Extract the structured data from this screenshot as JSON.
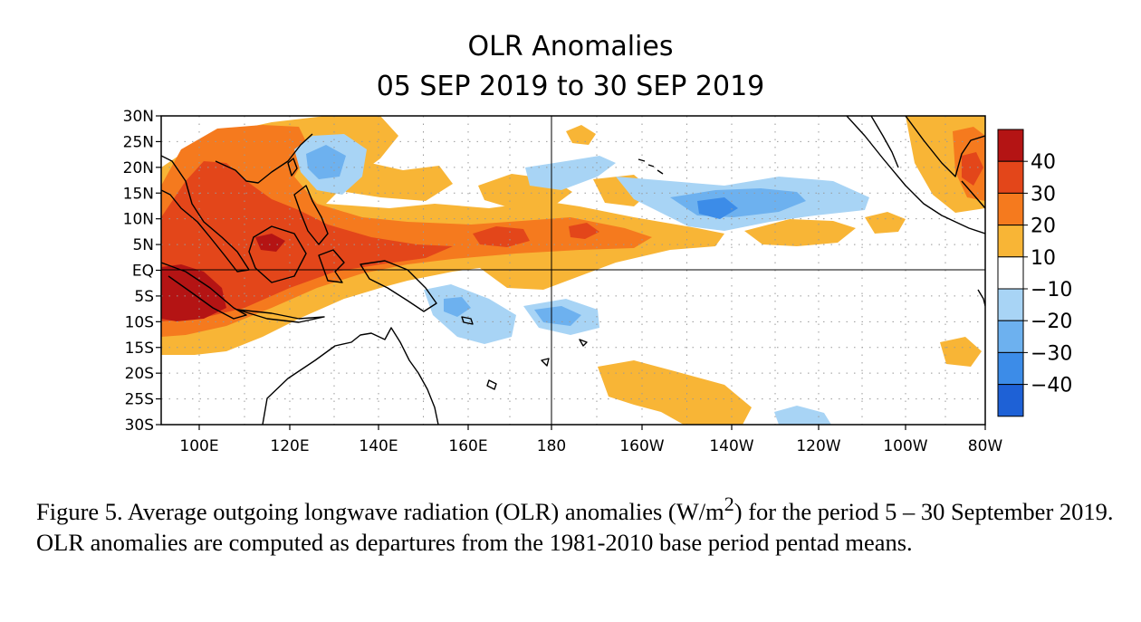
{
  "figure": {
    "title_line1": "OLR Anomalies",
    "title_line2": "05 SEP 2019 to 30 SEP 2019",
    "lat_ticks": [
      "30N",
      "25N",
      "20N",
      "15N",
      "10N",
      "5N",
      "EQ",
      "5S",
      "10S",
      "15S",
      "20S",
      "25S",
      "30S"
    ],
    "lon_ticks": [
      "100E",
      "120E",
      "140E",
      "160E",
      "180",
      "160W",
      "140W",
      "120W",
      "100W",
      "80W"
    ],
    "colorbar": {
      "labels": [
        "40",
        "30",
        "20",
        "10",
        "−10",
        "−20",
        "−30",
        "−40"
      ],
      "colors": [
        "#b41414",
        "#e3461a",
        "#f57a1e",
        "#f8b536",
        "#ffffff",
        "#a8d4f5",
        "#6db1ef",
        "#3c8ce8",
        "#1e61d6"
      ]
    },
    "palette": {
      "red_dark": "#b41414",
      "red": "#e3461a",
      "orange": "#f57a1e",
      "yellow": "#f8b536",
      "blue_light": "#a8d4f5",
      "blue": "#6db1ef",
      "blue_mid": "#3c8ce8",
      "blue_dark": "#1e61d6"
    }
  },
  "caption": {
    "text_before_sup": "Figure 5. Average outgoing longwave radiation (OLR) anomalies (W/m",
    "sup": "2",
    "text_after_sup": ") for the period 5 – 30 September 2019.  OLR anomalies are computed as departures from the 1981-2010 base period pentad means."
  }
}
